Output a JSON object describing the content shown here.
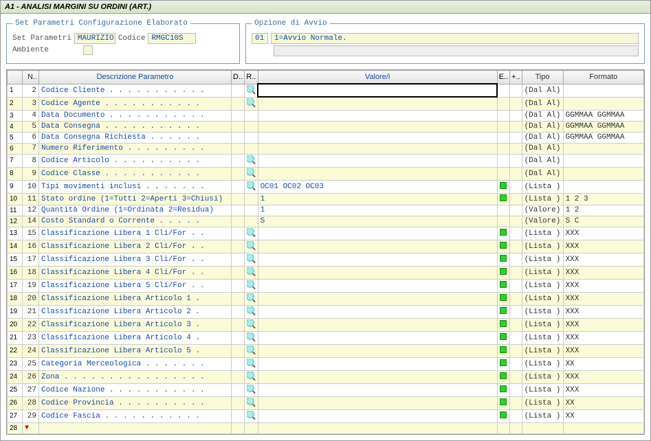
{
  "title": "A1 - ANALISI MARGINI SU ORDINI (ART.)",
  "fieldset1": {
    "legend": "Set Parametri Configurazione Elaborato",
    "set_param_label": "Set Parametri",
    "set_param_value": "MAURIZIO",
    "codice_label": "Codice",
    "codice_value": "RMGC10S",
    "ambiente_label": "Ambiente"
  },
  "fieldset2": {
    "legend": "Opzione di Avvio",
    "code": "01",
    "text": "1=Avvio Normale."
  },
  "columns": {
    "n": "N..",
    "desc": "Descrizione Parametro",
    "d": "D..",
    "r": "R..",
    "val": "Valore/i",
    "e": "E..",
    "plus": "+..",
    "tipo": "Tipo",
    "formato": "Formato"
  },
  "rows": [
    {
      "rn": "1",
      "n": "2",
      "desc": "Codice Cliente . . . . . . . . . . .",
      "mag": true,
      "val": "",
      "green": false,
      "tipo": "(Dal Al)",
      "fmt": ""
    },
    {
      "rn": "2",
      "n": "3",
      "desc": "Codice Agente  . . . . . . . . . . .",
      "mag": true,
      "val": "",
      "green": false,
      "tipo": "(Dal Al)",
      "fmt": ""
    },
    {
      "rn": "3",
      "n": "4",
      "desc": "Data Documento . . . . . . . . . . .",
      "mag": false,
      "val": "",
      "green": false,
      "tipo": "(Dal Al)",
      "fmt": "GGMMAA GGMMAA"
    },
    {
      "rn": "4",
      "n": "5",
      "desc": "Data Consegna  . . . . . . . . . . .",
      "mag": false,
      "val": "",
      "green": false,
      "tipo": "(Dal Al)",
      "fmt": "GGMMAA GGMMAA"
    },
    {
      "rn": "5",
      "n": "6",
      "desc": "Data Consegna Richiesta  . . . . . .",
      "mag": false,
      "val": "",
      "green": false,
      "tipo": "(Dal Al)",
      "fmt": "GGMMAA GGMMAA"
    },
    {
      "rn": "6",
      "n": "7",
      "desc": "Numero Riferimento . . . . . . . . .",
      "mag": false,
      "val": "",
      "green": false,
      "tipo": "(Dal Al)",
      "fmt": ""
    },
    {
      "rn": "7",
      "n": "8",
      "desc": "Codice Articolo  . . . . . . . . . .",
      "mag": true,
      "val": "",
      "green": false,
      "tipo": "(Dal Al)",
      "fmt": ""
    },
    {
      "rn": "8",
      "n": "9",
      "desc": "Codice Classe  . . . . . . . . . . .",
      "mag": true,
      "val": "",
      "green": false,
      "tipo": "(Dal Al)",
      "fmt": ""
    },
    {
      "rn": "9",
      "n": "10",
      "desc": "Tipi movimenti inclusi . . . . . . .",
      "mag": true,
      "val": "OC01 OC02 OC03",
      "green": true,
      "tipo": "(Lista )",
      "fmt": ""
    },
    {
      "rn": "10",
      "n": "11",
      "desc": "Stato ordine (1=Tutti 2=Aperti 3=Chiusi)",
      "mag": false,
      "val": "1",
      "green": true,
      "tipo": "(Lista )",
      "fmt": "1 2 3"
    },
    {
      "rn": "11",
      "n": "12",
      "desc": "Quantità Ordine (1=Ordinata 2=Residua)",
      "mag": false,
      "val": "1",
      "green": false,
      "tipo": "(Valore)",
      "fmt": "1 2"
    },
    {
      "rn": "12",
      "n": "14",
      "desc": "Costo Standard o Corrente  . . . . .",
      "mag": false,
      "val": "S",
      "green": false,
      "tipo": "(Valore)",
      "fmt": "S C"
    },
    {
      "rn": "13",
      "n": "15",
      "desc": "Classificazione Libera 1 Cli/For . .",
      "mag": true,
      "val": "",
      "green": true,
      "tipo": "(Lista )",
      "fmt": "XXX"
    },
    {
      "rn": "14",
      "n": "16",
      "desc": "Classificazione Libera 2 Cli/For . .",
      "mag": true,
      "val": "",
      "green": true,
      "tipo": "(Lista )",
      "fmt": "XXX"
    },
    {
      "rn": "15",
      "n": "17",
      "desc": "Classificazione Libera 3 Cli/For . .",
      "mag": true,
      "val": "",
      "green": true,
      "tipo": "(Lista )",
      "fmt": "XXX"
    },
    {
      "rn": "16",
      "n": "18",
      "desc": "Classificazione Libera 4 Cli/For . .",
      "mag": true,
      "val": "",
      "green": true,
      "tipo": "(Lista )",
      "fmt": "XXX"
    },
    {
      "rn": "17",
      "n": "19",
      "desc": "Classificazione Libera 5 Cli/For . .",
      "mag": true,
      "val": "",
      "green": true,
      "tipo": "(Lista )",
      "fmt": "XXX"
    },
    {
      "rn": "18",
      "n": "20",
      "desc": "Classificazione Libera Articolo 1  .",
      "mag": true,
      "val": "",
      "green": true,
      "tipo": "(Lista )",
      "fmt": "XXX"
    },
    {
      "rn": "19",
      "n": "21",
      "desc": "Classificazione Libera Articolo 2  .",
      "mag": true,
      "val": "",
      "green": true,
      "tipo": "(Lista )",
      "fmt": "XXX"
    },
    {
      "rn": "20",
      "n": "22",
      "desc": "Classificazione Libera Articolo 3  .",
      "mag": true,
      "val": "",
      "green": true,
      "tipo": "(Lista )",
      "fmt": "XXX"
    },
    {
      "rn": "21",
      "n": "23",
      "desc": "Classificazione Libera Articolo 4  .",
      "mag": true,
      "val": "",
      "green": true,
      "tipo": "(Lista )",
      "fmt": "XXX"
    },
    {
      "rn": "22",
      "n": "24",
      "desc": "Classificazione Libera Articolo 5  .",
      "mag": true,
      "val": "",
      "green": true,
      "tipo": "(Lista )",
      "fmt": "XXX"
    },
    {
      "rn": "23",
      "n": "25",
      "desc": "Categoria Merceologica . . . . . . .",
      "mag": true,
      "val": "",
      "green": true,
      "tipo": "(Lista )",
      "fmt": "XX"
    },
    {
      "rn": "24",
      "n": "26",
      "desc": "Zona . . . . . . . . . . . . . . . .",
      "mag": true,
      "val": "",
      "green": true,
      "tipo": "(Lista )",
      "fmt": "XXX"
    },
    {
      "rn": "25",
      "n": "27",
      "desc": "Codice Nazione . . . . . . . . . . .",
      "mag": true,
      "val": "",
      "green": true,
      "tipo": "(Lista )",
      "fmt": "XXX"
    },
    {
      "rn": "26",
      "n": "28",
      "desc": "Codice Provincia . . . . . . . . . .",
      "mag": true,
      "val": "",
      "green": true,
      "tipo": "(Lista )",
      "fmt": "XX"
    },
    {
      "rn": "27",
      "n": "29",
      "desc": "Codice Fascia  . . . . . . . . . . .",
      "mag": true,
      "val": "",
      "green": true,
      "tipo": "(Lista )",
      "fmt": "XX"
    },
    {
      "rn": "28",
      "n": "",
      "desc": "",
      "mag": false,
      "val": "",
      "green": false,
      "tipo": "",
      "fmt": "",
      "last": true
    }
  ]
}
